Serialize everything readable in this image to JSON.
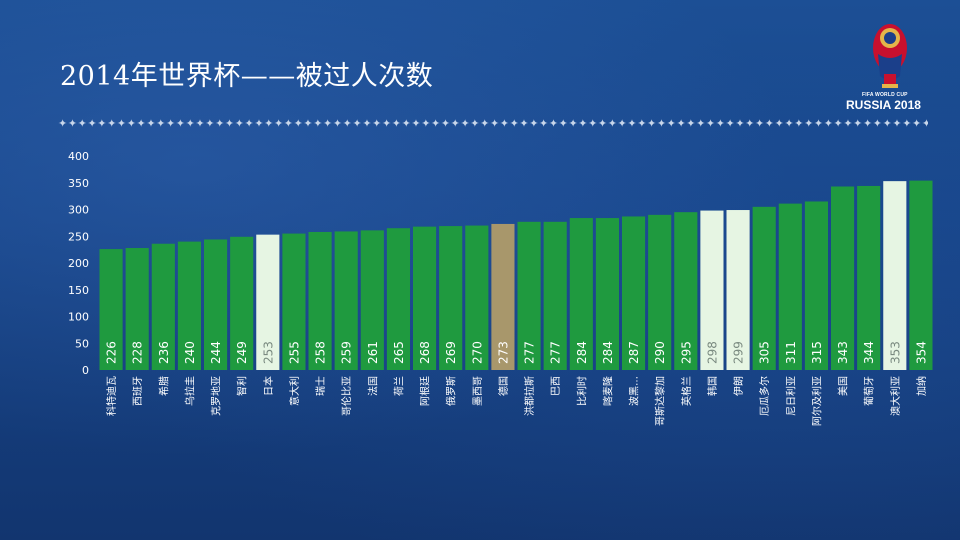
{
  "page": {
    "title": "2014年世界杯——被过人次数",
    "divider": "✦✦✦✦✦✦✦✦✦✦✦✦✦✦✦✦✦✦✦✦✦✦✦✦✦✦✦✦✦✦✦✦✦✦✦✦✦✦✦✦✦✦✦✦✦✦✦✦✦✦✦✦✦✦✦✦✦✦✦✦✦✦✦✦✦✦✦✦✦✦✦✦✦✦✦✦✦✦✦✦✦✦✦✦✦✦✦✦✦",
    "logo_line1": "FIFA WORLD CUP",
    "logo_line2": "RUSSIA 2018"
  },
  "colors": {
    "bar_default": "#1f9a3f",
    "bar_light": "#e6f5e3",
    "bar_gold": "#a8976b",
    "value_text": "#ffffff",
    "value_text_dark": "#ffffff",
    "axis_text": "#ffffff"
  },
  "chart_data": {
    "type": "bar",
    "title": "2014年世界杯——被过人次数",
    "xlabel": "",
    "ylabel": "",
    "ylim": [
      0,
      400
    ],
    "yticks": [
      0,
      50,
      100,
      150,
      200,
      250,
      300,
      350,
      400
    ],
    "grid": false,
    "categories": [
      "科特迪瓦",
      "西班牙",
      "希腊",
      "乌拉圭",
      "克罗地亚",
      "智利",
      "日本",
      "意大利",
      "瑞士",
      "哥伦比亚",
      "法国",
      "荷兰",
      "阿根廷",
      "俄罗斯",
      "墨西哥",
      "德国",
      "洪都拉斯",
      "巴西",
      "比利时",
      "喀麦隆",
      "波黑…",
      "哥斯达黎加",
      "英格兰",
      "韩国",
      "伊朗",
      "厄瓜多尔",
      "尼日利亚",
      "阿尔及利亚",
      "美国",
      "葡萄牙",
      "澳大利亚",
      "加纳"
    ],
    "values": [
      226,
      228,
      236,
      240,
      244,
      249,
      253,
      255,
      258,
      259,
      261,
      265,
      268,
      269,
      270,
      273,
      277,
      277,
      284,
      284,
      287,
      290,
      295,
      298,
      299,
      305,
      311,
      315,
      343,
      344,
      353,
      354
    ],
    "highlight": [
      "default",
      "default",
      "default",
      "default",
      "default",
      "default",
      "light",
      "default",
      "default",
      "default",
      "default",
      "default",
      "default",
      "default",
      "default",
      "gold",
      "default",
      "default",
      "default",
      "default",
      "default",
      "default",
      "default",
      "light",
      "light",
      "default",
      "default",
      "default",
      "default",
      "default",
      "light",
      "default"
    ]
  }
}
